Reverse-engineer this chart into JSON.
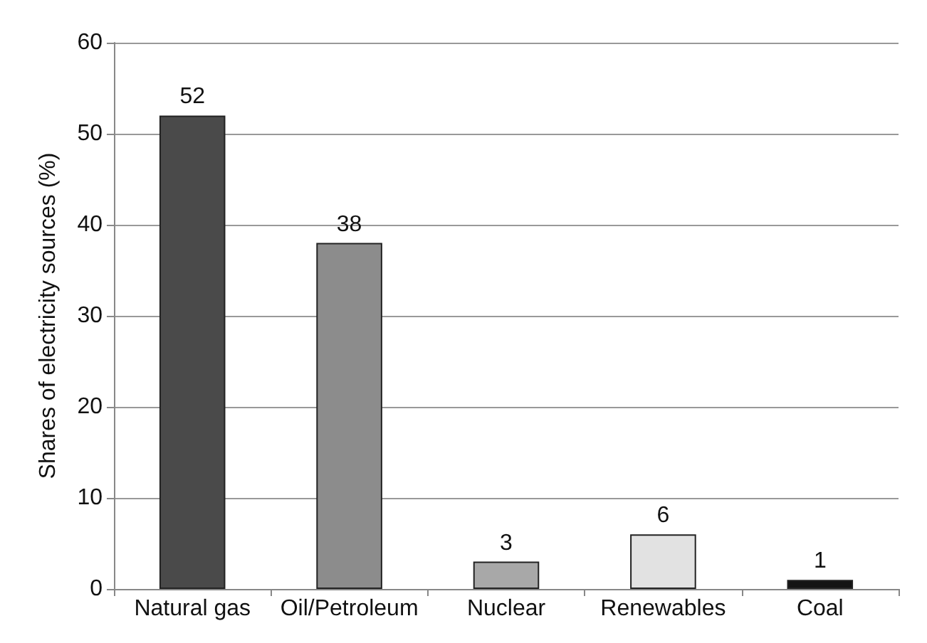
{
  "chart_data": {
    "type": "bar",
    "ylabel": "Shares of electricity sources (%)",
    "categories": [
      "Natural gas",
      "Oil/Petroleum",
      "Nuclear",
      "Renewables",
      "Coal"
    ],
    "values": [
      52,
      38,
      3,
      6,
      1
    ],
    "colors": [
      "#4a4a4a",
      "#8c8c8c",
      "#a8a8a8",
      "#e2e2e2",
      "#141414"
    ],
    "ylim": [
      0,
      60
    ],
    "yticks": [
      0,
      10,
      20,
      30,
      40,
      50,
      60
    ],
    "grid": "y",
    "data_labels": true
  }
}
